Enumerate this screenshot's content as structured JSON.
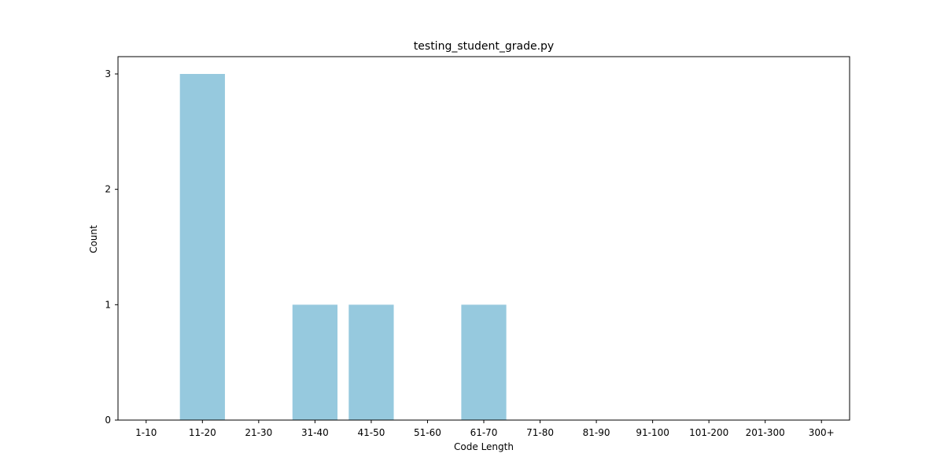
{
  "chart_data": {
    "type": "bar",
    "title": "testing_student_grade.py",
    "xlabel": "Code Length",
    "ylabel": "Count",
    "categories": [
      "1-10",
      "11-20",
      "21-30",
      "31-40",
      "41-50",
      "51-60",
      "61-70",
      "71-80",
      "81-90",
      "91-100",
      "101-200",
      "201-300",
      "300+"
    ],
    "values": [
      0,
      3,
      0,
      1,
      1,
      0,
      1,
      0,
      0,
      0,
      0,
      0,
      0
    ],
    "ylim": [
      0,
      3.15
    ],
    "yticks": [
      0,
      1,
      2,
      3
    ],
    "grid": false,
    "bar_color": "#96c9de",
    "axis_color": "#000000"
  }
}
